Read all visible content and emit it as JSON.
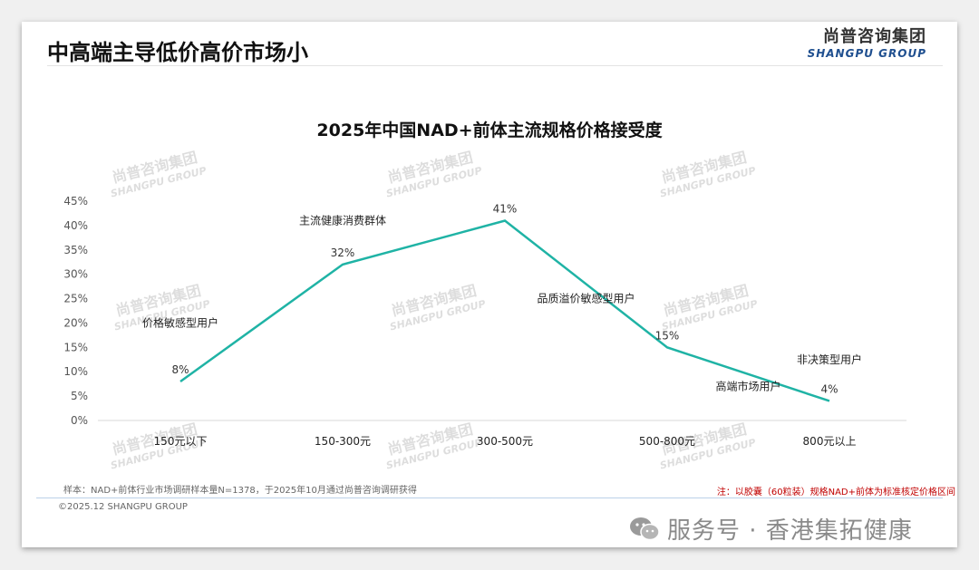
{
  "header": {
    "page_title": "中高端主导低价高价市场小",
    "brand_cn": "尚普咨询集团",
    "brand_en": "SHANGPU GROUP"
  },
  "watermark": {
    "cn": "尚普咨询集团",
    "en": "SHANGPU GROUP"
  },
  "chart_data": {
    "type": "line",
    "title": "2025年中国NAD+前体主流规格价格接受度",
    "categories": [
      "150元以下",
      "150-300元",
      "300-500元",
      "500-800元",
      "800元以上"
    ],
    "values": [
      8,
      32,
      41,
      15,
      4
    ],
    "value_labels": [
      "8%",
      "32%",
      "41%",
      "15%",
      "4%"
    ],
    "y_ticks": [
      "0%",
      "5%",
      "10%",
      "15%",
      "20%",
      "25%",
      "30%",
      "35%",
      "40%",
      "45%"
    ],
    "ylim": [
      0,
      45
    ],
    "line_color": "#1fb3a5",
    "annotations": [
      {
        "text": "价格敏感型用户",
        "category": 0,
        "value": 20
      },
      {
        "text": "主流健康消费群体",
        "category": 1,
        "value": 41
      },
      {
        "text": "品质溢价敏感型用户",
        "category": 2.5,
        "value": 25
      },
      {
        "text": "高端市场用户",
        "category": 3.5,
        "value": 7
      },
      {
        "text": "非决策型用户",
        "category": 4,
        "value": 12.5
      }
    ]
  },
  "footer": {
    "sample_note": "样本：NAD+前体行业市场调研样本量N=1378，于2025年10月通过尚普咨询调研获得",
    "copyright": "©2025.12 SHANGPU GROUP",
    "red_note": "注：以胶囊（60粒装）规格NAD+前体为标准核定价格区间",
    "account": "服务号 · 香港集拓健康"
  }
}
